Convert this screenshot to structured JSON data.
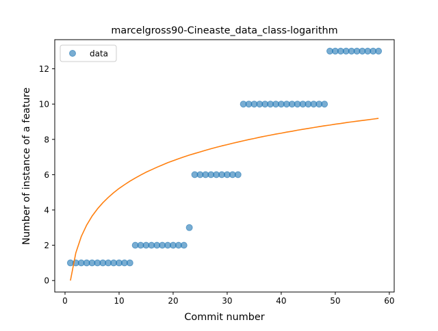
{
  "chart_data": {
    "type": "scatter",
    "title": "marcelgross90-Cineaste_data_class-logarithm",
    "xlabel": "Commit number",
    "ylabel": "Number of instance of a feature",
    "xlim": [
      -1.9,
      60.9
    ],
    "ylim": [
      -0.65,
      13.65
    ],
    "xticks": [
      0,
      10,
      20,
      30,
      40,
      50,
      60
    ],
    "yticks": [
      0,
      2,
      4,
      6,
      8,
      10,
      12
    ],
    "grid": false,
    "legend": {
      "position": "upper-left",
      "entries": [
        "data"
      ]
    },
    "series": [
      {
        "name": "data",
        "type": "scatter",
        "color": "#1f77b4",
        "alpha": 0.6,
        "x": [
          1,
          2,
          3,
          4,
          5,
          6,
          7,
          8,
          9,
          10,
          11,
          12,
          13,
          14,
          15,
          16,
          17,
          18,
          19,
          20,
          21,
          22,
          23,
          24,
          25,
          26,
          27,
          28,
          29,
          30,
          31,
          32,
          33,
          34,
          35,
          36,
          37,
          38,
          39,
          40,
          41,
          42,
          43,
          44,
          45,
          46,
          47,
          48,
          49,
          50,
          51,
          52,
          53,
          54,
          55,
          56,
          57,
          58
        ],
        "y": [
          1,
          1,
          1,
          1,
          1,
          1,
          1,
          1,
          1,
          1,
          1,
          1,
          2,
          2,
          2,
          2,
          2,
          2,
          2,
          2,
          2,
          2,
          3,
          6,
          6,
          6,
          6,
          6,
          6,
          6,
          6,
          6,
          10,
          10,
          10,
          10,
          10,
          10,
          10,
          10,
          10,
          10,
          10,
          10,
          10,
          10,
          10,
          10,
          13,
          13,
          13,
          13,
          13,
          13,
          13,
          13,
          13,
          13
        ]
      },
      {
        "name": "",
        "type": "line",
        "color": "#ff7f0e",
        "x": [
          1,
          2,
          3,
          4,
          5,
          6,
          7,
          8,
          9,
          10,
          11,
          12,
          13,
          14,
          15,
          16,
          17,
          18,
          19,
          20,
          21,
          22,
          23,
          24,
          25,
          26,
          27,
          28,
          29,
          30,
          31,
          32,
          33,
          34,
          35,
          36,
          37,
          38,
          39,
          40,
          41,
          42,
          43,
          44,
          45,
          46,
          47,
          48,
          49,
          50,
          51,
          52,
          53,
          54,
          55,
          56,
          57,
          58
        ],
        "y": [
          0.0,
          1.57,
          2.49,
          3.14,
          3.65,
          4.06,
          4.41,
          4.71,
          4.98,
          5.22,
          5.43,
          5.63,
          5.81,
          5.98,
          6.14,
          6.28,
          6.42,
          6.55,
          6.68,
          6.79,
          6.9,
          7.01,
          7.11,
          7.2,
          7.29,
          7.38,
          7.47,
          7.55,
          7.63,
          7.7,
          7.78,
          7.85,
          7.92,
          7.99,
          8.05,
          8.12,
          8.18,
          8.24,
          8.3,
          8.35,
          8.41,
          8.46,
          8.52,
          8.57,
          8.62,
          8.67,
          8.72,
          8.77,
          8.81,
          8.86,
          8.9,
          8.95,
          8.99,
          9.03,
          9.07,
          9.11,
          9.15,
          9.19
        ]
      }
    ]
  }
}
